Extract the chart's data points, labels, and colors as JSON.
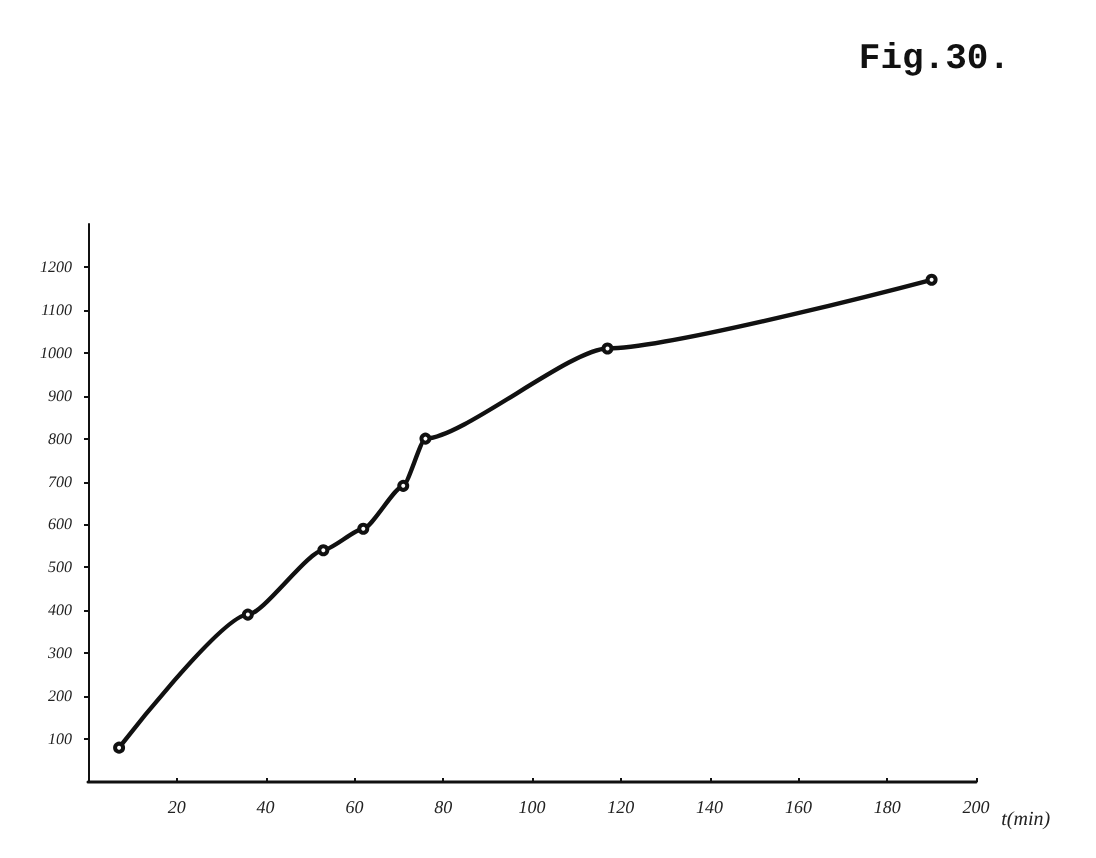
{
  "chart_data": {
    "type": "line",
    "title": "Fig.30.",
    "xlabel": "t(min)",
    "x": [
      7,
      36,
      53,
      62,
      71,
      76,
      117,
      190
    ],
    "series": [
      {
        "color": "#111111",
        "values": [
          80,
          390,
          540,
          590,
          690,
          800,
          1010,
          1170
        ]
      }
    ],
    "xlim": [
      0,
      200
    ],
    "xticks": [
      20,
      40,
      60,
      80,
      100,
      120,
      140,
      160,
      180,
      200
    ],
    "ylim": [
      0,
      1300
    ],
    "yticks": [
      100,
      200,
      300,
      400,
      500,
      600,
      700,
      800,
      900,
      1000,
      1100,
      1200
    ],
    "grid": false,
    "marker": "circle",
    "line_style": "solid"
  }
}
